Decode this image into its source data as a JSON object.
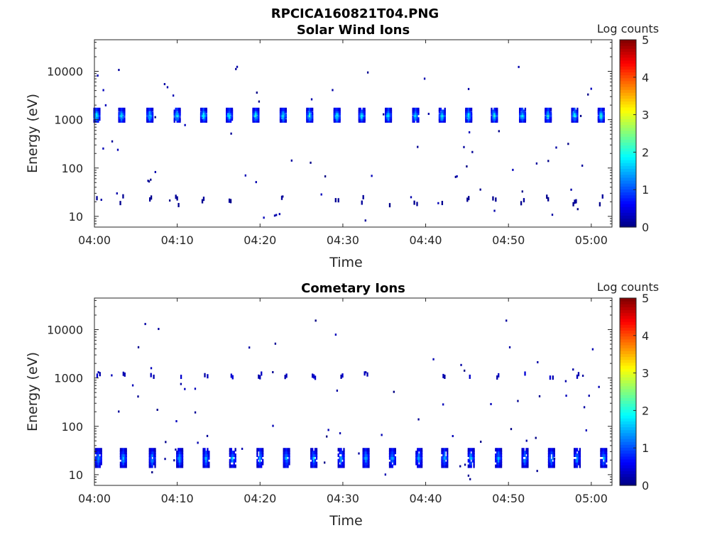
{
  "figure_title": "RPCICA160821T04.PNG",
  "chart_data": [
    {
      "type": "heatmap",
      "title": "Solar Wind Ions",
      "xlabel": "Time",
      "ylabel": "Energy (eV)",
      "y_scale": "log",
      "ylim": [
        6,
        45000
      ],
      "x_ticks": [
        "04:00",
        "04:10",
        "04:20",
        "04:30",
        "04:40",
        "04:50",
        "05:00"
      ],
      "x_range_minutes": [
        0,
        62.5
      ],
      "y_ticks": [
        {
          "value": 10,
          "label": "10"
        },
        {
          "value": 100,
          "label": "100"
        },
        {
          "value": 1000,
          "label": "1000"
        },
        {
          "value": 10000,
          "label": "10000"
        }
      ],
      "colorbar": {
        "label": "Log counts",
        "ticks": [
          "0",
          "1",
          "2",
          "3",
          "4",
          "5"
        ],
        "range": [
          0,
          5
        ],
        "colormap": "jet"
      },
      "description_of_structure": "Periodic enhancements near 1000 eV roughly every 3.2 minutes with peak log counts ~2; weak counts (~0) near 20 eV; scattered isolated counts",
      "band_centers_minutes": [
        0.3,
        3.3,
        6.7,
        10.0,
        13.2,
        16.3,
        19.5,
        22.8,
        26.0,
        29.3,
        32.3,
        35.5,
        38.8,
        42.0,
        45.2,
        48.3,
        51.7,
        54.8,
        58.0,
        61.2
      ],
      "band_energy_eV": [
        900,
        1700
      ],
      "band_peak_log_counts": 2.2,
      "low_energy_band_eV": [
        17,
        26
      ],
      "low_energy_log_counts": 0.1
    },
    {
      "type": "heatmap",
      "title": "Cometary Ions",
      "xlabel": "Time",
      "ylabel": "Energy (eV)",
      "y_scale": "log",
      "ylim": [
        6,
        45000
      ],
      "x_ticks": [
        "04:00",
        "04:10",
        "04:20",
        "04:30",
        "04:40",
        "04:50",
        "05:00"
      ],
      "x_range_minutes": [
        0,
        62.5
      ],
      "y_ticks": [
        {
          "value": 10,
          "label": "10"
        },
        {
          "value": 100,
          "label": "100"
        },
        {
          "value": 1000,
          "label": "1000"
        },
        {
          "value": 10000,
          "label": "10000"
        }
      ],
      "colorbar": {
        "label": "Log counts",
        "ticks": [
          "0",
          "1",
          "2",
          "3",
          "4",
          "5"
        ],
        "range": [
          0,
          5
        ],
        "colormap": "jet"
      },
      "description_of_structure": "Periodic enhancements between 14 and 35 eV with peak log counts ~1.7; weak counts (~0.3) near 1100 eV; scattered isolated counts",
      "band_centers_minutes": [
        0.5,
        3.5,
        7.0,
        10.3,
        13.5,
        16.7,
        20.0,
        23.2,
        26.5,
        29.8,
        32.8,
        36.0,
        39.2,
        42.3,
        45.5,
        48.8,
        52.0,
        55.2,
        58.3,
        61.5
      ],
      "band_energy_eV": [
        14,
        35
      ],
      "band_peak_log_counts": 1.7,
      "high_energy_band_eV": [
        1000,
        1250
      ],
      "high_energy_log_counts": 0.3
    }
  ]
}
